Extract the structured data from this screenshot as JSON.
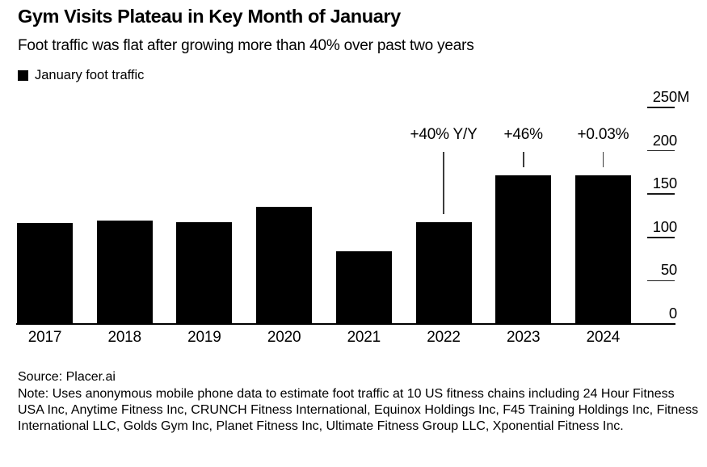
{
  "header": {
    "title": "Gym Visits Plateau in Key Month of January",
    "subtitle": "Foot traffic was flat after growing more than 40% over past two years"
  },
  "legend": {
    "label": "January foot traffic",
    "swatch_color": "#000000"
  },
  "chart_data": {
    "type": "bar",
    "title": "Gym Visits Plateau in Key Month of January",
    "subtitle": "Foot traffic was flat after growing more than 40% over past two years",
    "legend_entries": [
      "January foot traffic"
    ],
    "legend_position": "top-left",
    "categories": [
      "2017",
      "2018",
      "2019",
      "2020",
      "2021",
      "2022",
      "2023",
      "2024"
    ],
    "values": [
      117,
      119,
      118,
      135,
      84,
      118,
      172,
      172
    ],
    "unit": "M",
    "ylabel": "",
    "xlabel": "",
    "ylim": [
      0,
      250
    ],
    "yticks": [
      0,
      50,
      100,
      150,
      200,
      250
    ],
    "ytick_labels": [
      "0",
      "50",
      "100",
      "150",
      "200",
      "250M"
    ],
    "axis_side": "right",
    "grid": false,
    "bar_color": "#000000",
    "annotation_line_color": "#3d3d3d",
    "annotations": [
      {
        "category": "2022",
        "text": "+40% Y/Y"
      },
      {
        "category": "2023",
        "text": "+46%"
      },
      {
        "category": "2024",
        "text": "+0.03%"
      }
    ]
  },
  "footer": {
    "source": "Source: Placer.ai",
    "note": "Note: Uses anonymous mobile phone data to estimate foot traffic at 10 US fitness chains including 24 Hour Fitness USA Inc, Anytime Fitness Inc, CRUNCH Fitness International, Equinox Holdings Inc, F45 Training Holdings Inc, Fitness International LLC, Golds Gym Inc, Planet Fitness Inc, Ultimate Fitness Group LLC, Xponential Fitness Inc."
  }
}
